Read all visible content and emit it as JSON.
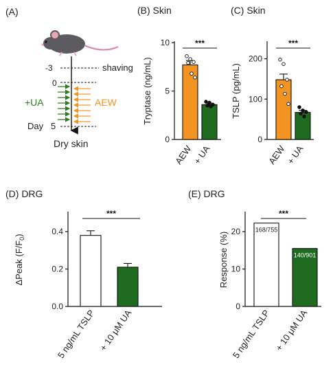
{
  "colors": {
    "aew": "#f39321",
    "ua": "#1f6b1f",
    "control_fill": "#ffffff",
    "axis": "#111111",
    "uaText": "#2e7d1e",
    "aewText": "#f39321"
  },
  "panelA": {
    "label": "(A)",
    "timeline": {
      "m3": "-3",
      "d0": "0",
      "d5": "5",
      "day": "Day"
    },
    "shaving": "shaving",
    "ua": "+UA",
    "aew": "AEW",
    "dry": "Dry skin",
    "icons": [
      "mouse-icon",
      "down-arrow-icon",
      "right-arrow-icon",
      "left-arrow-icon"
    ]
  },
  "chart_data": [
    {
      "id": "B",
      "panel_label": "(B) Skin",
      "type": "bar",
      "ylabel": "Tryptase (ng/mL)",
      "ylim": [
        0,
        10
      ],
      "yticks": [
        0,
        5,
        10
      ],
      "categories": [
        "AEW",
        "+ UA"
      ],
      "values": [
        7.7,
        3.6
      ],
      "sem": [
        0.45,
        0.15
      ],
      "points": [
        [
          8.6,
          8.3,
          8.0,
          7.9,
          6.8,
          6.4
        ],
        [
          3.9,
          3.8,
          3.6,
          3.5,
          3.4
        ]
      ],
      "bar_colors": [
        "aew",
        "ua"
      ],
      "significance": "***"
    },
    {
      "id": "C",
      "panel_label": "(C) Skin",
      "type": "bar",
      "ylabel": "TSLP (pg/mL)",
      "ylim": [
        0,
        240
      ],
      "yticks": [
        0,
        100,
        200
      ],
      "categories": [
        "AEW",
        "+ UA"
      ],
      "values": [
        148,
        67
      ],
      "sem": [
        14,
        5
      ],
      "points": [
        [
          198,
          187,
          148,
          132,
          113,
          88
        ],
        [
          80,
          72,
          68,
          64,
          57
        ]
      ],
      "bar_colors": [
        "aew",
        "ua"
      ],
      "significance": "***"
    },
    {
      "id": "D",
      "panel_label": "(D) DRG",
      "type": "bar",
      "ylabel": "ΔPeak (F/F0)",
      "ylim": [
        0,
        0.5
      ],
      "yticks": [
        "0.0",
        "0.2",
        "0.4"
      ],
      "categories": [
        "5 ng/mL TSLP",
        "+ 10 μM UA"
      ],
      "values": [
        0.38,
        0.21
      ],
      "sem": [
        0.025,
        0.02
      ],
      "bar_colors": [
        "control_fill",
        "ua"
      ],
      "significance": "***"
    },
    {
      "id": "E",
      "panel_label": "(E) DRG",
      "type": "bar",
      "ylabel": "Response (%)",
      "ylim": [
        0,
        25
      ],
      "yticks": [
        0,
        10,
        20
      ],
      "categories": [
        "5 ng/mL TSLP",
        "+ 10 μM UA"
      ],
      "values": [
        22.3,
        15.5
      ],
      "bar_labels": [
        "168/755",
        "140/901"
      ],
      "bar_colors": [
        "control_fill",
        "ua"
      ],
      "significance": "***"
    }
  ]
}
